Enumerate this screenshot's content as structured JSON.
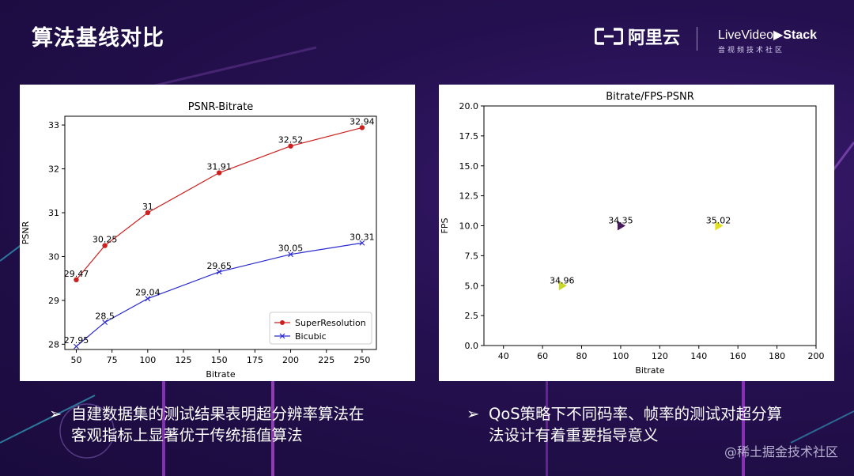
{
  "slide": {
    "title": "算法基线对比",
    "logo_aliyun": "阿里云",
    "logo_lvs_prefix": "Live",
    "logo_lvs_main": "Video",
    "logo_lvs_suffix": "Stack",
    "logo_lvs_sub": "音视频技术社区",
    "bullet_left": [
      "自建数据集的测试结果表明超分辨率算法在",
      "客观指标上显著优于传统插值算法"
    ],
    "bullet_right": [
      "QoS策略下不同码率、帧率的测试对超分算",
      "法设计有着重要指导意义"
    ],
    "bullet_glyph": "➢",
    "watermark": "@稀土掘金技术社区"
  },
  "chart_data": [
    {
      "type": "line",
      "title": "PSNR-Bitrate",
      "xlabel": "Bitrate",
      "ylabel": "PSNR",
      "xlim": [
        42,
        260
      ],
      "ylim": [
        27.88,
        33.2
      ],
      "xticks": [
        50,
        75,
        100,
        125,
        150,
        175,
        200,
        225,
        250
      ],
      "yticks": [
        28,
        29,
        30,
        31,
        32,
        33
      ],
      "legend": "bottom-right",
      "x": [
        50,
        70,
        100,
        150,
        200,
        250
      ],
      "series": [
        {
          "name": "SuperResolution",
          "color": "#cc1f1f",
          "marker": "circle",
          "values": [
            29.47,
            30.25,
            31,
            31.91,
            32.52,
            32.94
          ],
          "labels": [
            "29.47",
            "30.25",
            "31",
            "31.91",
            "32.52",
            "32.94"
          ]
        },
        {
          "name": "Bicubic",
          "color": "#2a2ad0",
          "marker": "x",
          "values": [
            27.95,
            28.5,
            29.04,
            29.65,
            30.05,
            30.31
          ],
          "labels": [
            "27.95",
            "28.5",
            "29.04",
            "29.65",
            "30.05",
            "30.31"
          ]
        }
      ]
    },
    {
      "type": "scatter",
      "title": "Bitrate/FPS-PSNR",
      "xlabel": "Bitrate",
      "ylabel": "FPS",
      "xlim": [
        30,
        200
      ],
      "ylim": [
        0,
        20
      ],
      "xticks": [
        40,
        60,
        80,
        100,
        120,
        140,
        160,
        180,
        200
      ],
      "yticks": [
        0.0,
        2.5,
        5.0,
        7.5,
        10.0,
        12.5,
        15.0,
        17.5,
        20.0
      ],
      "ytick_labels": [
        "0.0",
        "2.5",
        "5.0",
        "7.5",
        "10.0",
        "12.5",
        "15.0",
        "17.5",
        "20.0"
      ],
      "points": [
        {
          "x": 70,
          "y": 5,
          "value": 34.96,
          "label": "34.96",
          "color": "#c8d82a"
        },
        {
          "x": 100,
          "y": 10,
          "value": 34.35,
          "label": "34.35",
          "color": "#4a1a5e"
        },
        {
          "x": 150,
          "y": 10,
          "value": 35.02,
          "label": "35.02",
          "color": "#e0e020"
        }
      ]
    }
  ]
}
